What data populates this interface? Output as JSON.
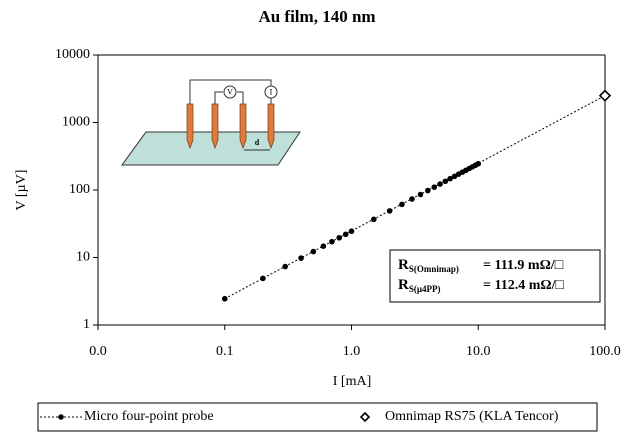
{
  "chart_data": {
    "type": "scatter",
    "title": "Au film, 140 nm",
    "x_label": "I [mA]",
    "y_label": "V [µV]",
    "xscale": "log",
    "yscale": "log",
    "xlim": [
      0.01,
      100
    ],
    "ylim": [
      1,
      10000
    ],
    "xticks": [
      {
        "value": 0.01,
        "label": "0.0"
      },
      {
        "value": 0.1,
        "label": "0.1"
      },
      {
        "value": 1,
        "label": "1.0"
      },
      {
        "value": 10,
        "label": "10.0"
      },
      {
        "value": 100,
        "label": "100.0"
      }
    ],
    "yticks": [
      1,
      10,
      100,
      1000,
      10000
    ],
    "legend": "bottom",
    "series": [
      {
        "name": "Micro four-point probe",
        "color": "#000000",
        "marker": "circle",
        "x": [
          0.1,
          0.2,
          0.3,
          0.4,
          0.5,
          0.6,
          0.7,
          0.8,
          0.9,
          1.0,
          1.5,
          2,
          2.5,
          3,
          3.5,
          4,
          4.5,
          5,
          5.5,
          6,
          6.5,
          7,
          7.5,
          8,
          8.5,
          9,
          9.5,
          10
        ],
        "values": [
          2.45,
          4.9,
          7.35,
          9.8,
          12.25,
          14.7,
          17.15,
          19.6,
          22.05,
          24.5,
          36.75,
          49,
          61.25,
          73.5,
          85.75,
          98,
          110.25,
          122.5,
          134.75,
          147,
          159.25,
          171.5,
          183.75,
          196,
          208.25,
          220.5,
          232.75,
          245
        ]
      },
      {
        "name": "Omnimap RS75 (KLA Tencor)",
        "color": "#000000",
        "marker": "diamond",
        "x": [
          100
        ],
        "values": [
          2500
        ]
      }
    ],
    "annotations": [
      {
        "main": "R",
        "sub": "S(Omnimap)",
        "text": "= 111.9 mΩ/□"
      },
      {
        "main": "R",
        "sub": "S(µ4PP)",
        "text": "= 112.4 mΩ/□"
      }
    ],
    "inset_labels": {
      "voltmeter": "V",
      "ammeter": "I",
      "spacing": "d"
    }
  }
}
